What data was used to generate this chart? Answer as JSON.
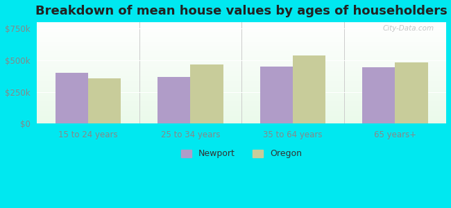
{
  "title": "Breakdown of mean house values by ages of householders",
  "categories": [
    "15 to 24 years",
    "25 to 34 years",
    "35 to 64 years",
    "65 years+"
  ],
  "newport_values": [
    400000,
    370000,
    450000,
    445000
  ],
  "oregon_values": [
    355000,
    465000,
    540000,
    485000
  ],
  "newport_color": "#b09cc8",
  "oregon_color": "#c8cc9a",
  "yticks": [
    0,
    250000,
    500000,
    750000
  ],
  "ytick_labels": [
    "$0",
    "$250k",
    "$500k",
    "$750k"
  ],
  "ylim": [
    0,
    800000
  ],
  "outer_bg": "#00e8f0",
  "watermark": "City-Data.com",
  "legend_newport": "Newport",
  "legend_oregon": "Oregon",
  "title_fontsize": 13,
  "bar_width": 0.32,
  "tick_color": "#888888",
  "tick_fontsize": 8.5
}
